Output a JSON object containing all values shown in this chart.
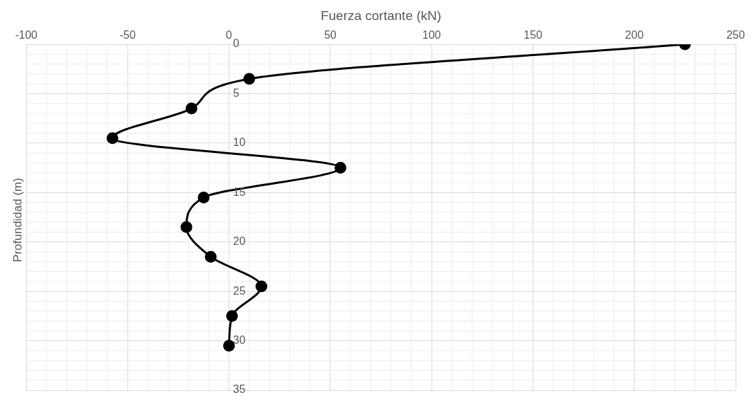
{
  "chart_data": {
    "type": "line",
    "xlabel": "Fuerza cortante (kN)",
    "ylabel": "Profundidad (m)",
    "x": [
      225,
      10,
      -18.5,
      -57.5,
      55,
      -12.5,
      -21,
      -9,
      16,
      1.5,
      0
    ],
    "values": [
      0,
      3.5,
      6.5,
      9.5,
      12.5,
      15.5,
      18.5,
      21.5,
      24.5,
      27.5,
      30.5
    ],
    "color": "#000000",
    "marker": "circle",
    "line_style": "solid",
    "xlim": [
      -100,
      250
    ],
    "xticks": [
      -100,
      -50,
      0,
      50,
      100,
      150,
      200,
      250
    ],
    "ylim": [
      35,
      0
    ],
    "yticks": [
      0,
      5,
      10,
      15,
      20,
      25,
      30,
      35
    ],
    "grid": true,
    "legend": false
  }
}
